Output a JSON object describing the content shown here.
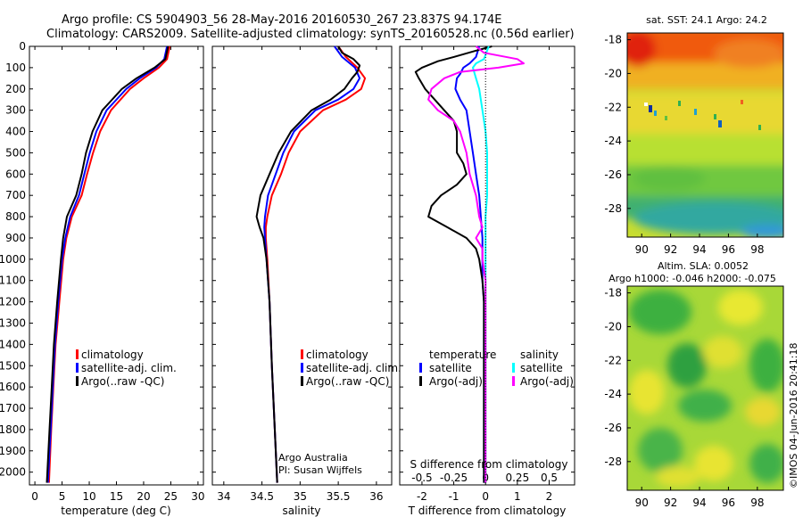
{
  "header": {
    "line1": "Argo profile: CS 5904903_56 28-May-2016 20160530_267 23.837S 94.174E",
    "line2": "Climatology: CARS2009. Satellite-adjusted climatology: synTS_20160528.nc (0.56d earlier)"
  },
  "colors": {
    "red": "#ff0000",
    "blue": "#0000ff",
    "black": "#000000",
    "cyan": "#00ffff",
    "magenta": "#ff00ff"
  },
  "depth_axis": {
    "ticks": [
      "0",
      "100",
      "200",
      "300",
      "400",
      "500",
      "600",
      "700",
      "800",
      "900",
      "1000",
      "1100",
      "1200",
      "1300",
      "1400",
      "1500",
      "1600",
      "1700",
      "1800",
      "1900",
      "2000"
    ],
    "ylim": [
      0,
      2060
    ]
  },
  "chart_data": [
    {
      "type": "line",
      "id": "temperature",
      "xlabel": "temperature (deg C)",
      "xlim": [
        -1,
        31
      ],
      "xticks": [
        "0",
        "5",
        "10",
        "15",
        "20",
        "25",
        "30"
      ],
      "legend": [
        "climatology",
        "satellite-adj. clim.",
        "Argo(..raw -QC)"
      ],
      "series": [
        {
          "name": "climatology",
          "color": "#ff0000",
          "depth": [
            0,
            60,
            100,
            150,
            200,
            300,
            400,
            500,
            600,
            700,
            800,
            900,
            1000,
            1200,
            1400,
            1600,
            1800,
            2050
          ],
          "values": [
            24.8,
            24.3,
            22.8,
            20.0,
            17.5,
            14.0,
            12.0,
            10.7,
            9.6,
            8.6,
            6.8,
            5.8,
            5.2,
            4.5,
            3.8,
            3.4,
            3.0,
            2.6
          ]
        },
        {
          "name": "satellite-adj. clim.",
          "color": "#0000ff",
          "depth": [
            0,
            60,
            100,
            150,
            200,
            300,
            400,
            500,
            600,
            700,
            800,
            900,
            1000,
            1200,
            1400,
            1600,
            1800,
            2050
          ],
          "values": [
            24.3,
            23.8,
            22.3,
            19.3,
            16.8,
            13.2,
            11.3,
            10.1,
            9.1,
            8.1,
            6.5,
            5.6,
            5.0,
            4.3,
            3.7,
            3.3,
            2.9,
            2.4
          ]
        },
        {
          "name": "Argo(..raw -QC)",
          "color": "#000000",
          "depth": [
            0,
            60,
            100,
            150,
            200,
            300,
            400,
            500,
            600,
            700,
            800,
            900,
            1000,
            1200,
            1400,
            1600,
            1800,
            2050
          ],
          "values": [
            24.5,
            24.0,
            22.0,
            18.7,
            16.0,
            12.4,
            10.6,
            9.4,
            8.6,
            7.6,
            5.9,
            5.2,
            4.8,
            4.1,
            3.5,
            3.1,
            2.7,
            2.2
          ]
        }
      ]
    },
    {
      "type": "line",
      "id": "salinity",
      "xlabel": "salinity",
      "xlim": [
        33.85,
        36.2
      ],
      "xticks": [
        "34",
        "34.5",
        "35",
        "35.5",
        "36"
      ],
      "legend": [
        "climatology",
        "satellite-adj. clim.",
        "Argo(..raw -QC)"
      ],
      "series": [
        {
          "name": "climatology",
          "color": "#ff0000",
          "depth": [
            0,
            50,
            100,
            150,
            200,
            250,
            300,
            400,
            500,
            600,
            700,
            800,
            850,
            900,
            1000,
            1200,
            1500,
            2050
          ],
          "values": [
            35.5,
            35.6,
            35.75,
            35.85,
            35.8,
            35.6,
            35.3,
            35.0,
            34.85,
            34.75,
            34.63,
            34.57,
            34.55,
            34.55,
            34.57,
            34.6,
            34.63,
            34.7
          ]
        },
        {
          "name": "satellite-adj. clim.",
          "color": "#0000ff",
          "depth": [
            0,
            50,
            100,
            150,
            200,
            250,
            300,
            400,
            500,
            600,
            700,
            800,
            850,
            900,
            1000,
            1200,
            1500,
            2050
          ],
          "values": [
            35.45,
            35.55,
            35.72,
            35.78,
            35.7,
            35.5,
            35.2,
            34.92,
            34.78,
            34.68,
            34.58,
            34.54,
            34.53,
            34.54,
            34.56,
            34.6,
            34.63,
            34.7
          ]
        },
        {
          "name": "Argo(..raw -QC)",
          "color": "#000000",
          "depth": [
            0,
            30,
            60,
            90,
            120,
            150,
            200,
            250,
            300,
            400,
            500,
            600,
            700,
            800,
            850,
            900,
            1000,
            1200,
            1500,
            2050
          ],
          "values": [
            35.5,
            35.55,
            35.7,
            35.78,
            35.75,
            35.68,
            35.58,
            35.4,
            35.15,
            34.88,
            34.72,
            34.6,
            34.48,
            34.43,
            34.47,
            34.52,
            34.56,
            34.6,
            34.63,
            34.7
          ]
        }
      ]
    },
    {
      "type": "line",
      "id": "difference",
      "xlabel": "T difference from climatology",
      "xlabel_top": "S difference from climatology",
      "xlim": [
        -2.7,
        2.8
      ],
      "xticks_T": [
        "-2",
        "-1",
        "0",
        "1",
        "2"
      ],
      "xticks_S": [
        "-0.5",
        "-0.25",
        "0",
        "0.25",
        "0.5"
      ],
      "legend_temperature_title": "temperature",
      "legend_salinity_title": "salinity",
      "legend_temperature": [
        "satellite",
        "Argo(-adj)"
      ],
      "legend_salinity": [
        "satellite",
        "Argo(-adj)"
      ],
      "series": [
        {
          "name": "temperature satellite",
          "color": "#0000ff",
          "depth": [
            0,
            50,
            80,
            100,
            130,
            150,
            200,
            250,
            300,
            400,
            500,
            600,
            700,
            800,
            900,
            1000,
            1100,
            1200,
            1500,
            2050
          ],
          "values": [
            -0.2,
            -0.3,
            -0.5,
            -0.7,
            -0.8,
            -0.9,
            -0.95,
            -0.8,
            -0.6,
            -0.5,
            -0.4,
            -0.3,
            -0.2,
            -0.15,
            -0.1,
            -0.1,
            -0.1,
            -0.05,
            -0.05,
            -0.05
          ]
        },
        {
          "name": "temperature Argo(-adj)",
          "color": "#000000",
          "depth": [
            0,
            20,
            50,
            70,
            100,
            120,
            150,
            200,
            250,
            300,
            350,
            400,
            500,
            550,
            600,
            650,
            700,
            750,
            800,
            850,
            900,
            950,
            1000,
            1100,
            1200,
            1500,
            2050
          ],
          "values": [
            0.2,
            -0.3,
            -1.0,
            -1.5,
            -2.0,
            -2.2,
            -2.1,
            -1.9,
            -1.6,
            -1.3,
            -1.0,
            -0.9,
            -0.9,
            -0.7,
            -0.6,
            -0.9,
            -1.4,
            -1.7,
            -1.8,
            -1.2,
            -0.6,
            -0.3,
            -0.2,
            -0.1,
            -0.05,
            -0.05,
            -0.05
          ]
        },
        {
          "name": "salinity satellite",
          "color": "#00ffff",
          "depth": [
            0,
            60,
            80,
            100,
            150,
            200,
            300,
            400,
            500,
            600,
            700,
            800,
            900,
            1000,
            1200,
            1500,
            2050
          ],
          "values": [
            0.1,
            -0.05,
            -0.3,
            -0.4,
            -0.3,
            -0.2,
            -0.1,
            0.0,
            0.05,
            0.05,
            0.05,
            0.0,
            0.0,
            0.0,
            0.0,
            0.0,
            0.0
          ]
        },
        {
          "name": "salinity Argo(-adj)",
          "color": "#ff00ff",
          "depth": [
            0,
            30,
            60,
            80,
            100,
            120,
            150,
            200,
            250,
            300,
            350,
            400,
            500,
            600,
            700,
            800,
            850,
            900,
            950,
            1000,
            1100,
            1200,
            1500,
            2050
          ],
          "values": [
            -0.3,
            -0.05,
            1.0,
            1.2,
            0.4,
            -0.8,
            -1.3,
            -1.7,
            -1.8,
            -1.5,
            -1.0,
            -0.8,
            -0.6,
            -0.5,
            -0.3,
            -0.2,
            -0.1,
            -0.3,
            -0.1,
            -0.1,
            0.0,
            0.0,
            0.0,
            0.0
          ]
        }
      ]
    }
  ],
  "maps": {
    "sst": {
      "title": "sat. SST: 24.1  Argo: 24.2",
      "yticks": [
        "-18",
        "-20",
        "-22",
        "-24",
        "-26",
        "-28"
      ],
      "xticks": [
        "90",
        "92",
        "94",
        "96",
        "98"
      ]
    },
    "sla": {
      "title_line1": "Altim. SLA: 0.0052",
      "title_line2": "Argo h1000: -0.046 h2000: -0.075",
      "yticks": [
        "-18",
        "-20",
        "-22",
        "-24",
        "-26",
        "-28"
      ],
      "xticks": [
        "90",
        "92",
        "94",
        "96",
        "98"
      ]
    }
  },
  "footer": {
    "argo_label": "Argo Australia",
    "pi_label": "PI: Susan Wijffels",
    "stamp": "©IMOS 04-Jun-2016 20:41:18"
  }
}
